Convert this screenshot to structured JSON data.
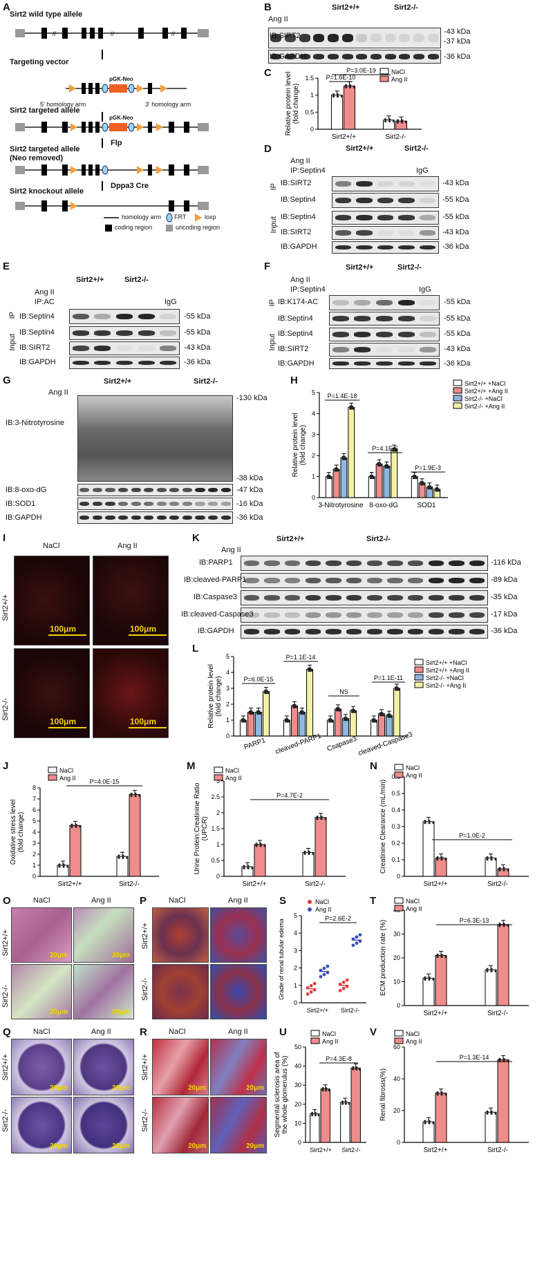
{
  "panels": {
    "A": {
      "label": "A",
      "rows": [
        {
          "title": "Sirt2 wild type allele",
          "exons": [
            "1",
            "4",
            "5",
            "6",
            "7",
            "8",
            "9",
            "16"
          ]
        },
        {
          "title": "Targeting vector",
          "arm5": "5' homology arm",
          "arm3": "3' homology arm",
          "cassette": "pGK-Neo",
          "exons": [
            "5",
            "6",
            "7",
            "8"
          ]
        },
        {
          "title": "Sirt2 targeted allele",
          "cassette": "pGK-Neo",
          "exons": [
            "1",
            "4",
            "5",
            "6",
            "7",
            "8",
            "9",
            "16"
          ]
        },
        {
          "title": "Sirt2 targeted allele\n(Neo removed)",
          "exons": [
            "1",
            "4",
            "5",
            "6",
            "7",
            "8",
            "9",
            "16"
          ]
        },
        {
          "title": "Sirt2 knockout allele",
          "exons": [
            "1",
            "4",
            "9",
            "16"
          ]
        }
      ],
      "steps": [
        "Flp",
        "Dppa3 Cre"
      ],
      "legend": [
        "homology arm",
        "FRT",
        "loxp",
        "coding region",
        "uncoding region"
      ]
    },
    "B": {
      "label": "B",
      "wt": "Sirt2+/+",
      "ko": "Sirt2-/-",
      "angII": "Ang II",
      "rows": [
        "IB:SIRT2",
        "IB:GAPDH"
      ],
      "sizes": [
        "-43 kDa",
        "-37 kDa",
        "-36 kDa"
      ],
      "signs": [
        "–",
        "–",
        "–",
        "+",
        "+",
        "+",
        "–",
        "–",
        "–",
        "+",
        "+",
        "+"
      ]
    },
    "C": {
      "label": "C",
      "ylabel": "Relative protein level\n(fold change)",
      "groups": [
        "Sirt2+/+",
        "Sirt2-/-"
      ],
      "legend": [
        "NaCl",
        "Ang II"
      ],
      "p1": "P=3.0E-19",
      "p2": "P=1.6E-10"
    },
    "D": {
      "label": "D",
      "wt": "Sirt2+/+",
      "ko": "Sirt2-/-",
      "angII": "Ang II",
      "ip": "IP:Septin4",
      "igg": "IgG",
      "side1": "IP",
      "side2": "Input",
      "rows": [
        "IB:SIRT2",
        "IB:Septin4",
        "IB:Septin4",
        "IB:SIRT2",
        "IB:GAPDH"
      ],
      "sizes": [
        "-43 kDa",
        "-55 kDa",
        "-55 kDa",
        "-43 kDa",
        "-36 kDa"
      ]
    },
    "E": {
      "label": "E",
      "wt": "Sirt2+/+",
      "ko": "Sirt2-/-",
      "angII": "Ang II",
      "ip": "IP:AC",
      "igg": "IgG",
      "side1": "IP",
      "side2": "Input",
      "rows": [
        "IB:Septin4",
        "IB:Septin4",
        "IB:SIRT2",
        "IB:GAPDH"
      ],
      "sizes": [
        "-55 kDa",
        "-55 kDa",
        "-43 kDa",
        "-36 kDa"
      ]
    },
    "F": {
      "label": "F",
      "wt": "Sirt2+/+",
      "ko": "Sirt2-/-",
      "angII": "Ang II",
      "ip": "IP:Septin4",
      "igg": "IgG",
      "side1": "IP",
      "side2": "Input",
      "rows": [
        "IB:K174-AC",
        "IB:Septin4",
        "IB:Septin4",
        "IB:SIRT2",
        "IB:GAPDH"
      ],
      "sizes": [
        "-55 kDa",
        "-55 kDa",
        "-55 kDa",
        "-43 kDa",
        "-36 kDa"
      ]
    },
    "G": {
      "label": "G",
      "wt": "Sirt2+/+",
      "ko": "Sirt2-/-",
      "angII": "Ang II",
      "rows": [
        "IB:3-Nitrotyrosine",
        "IB:8-oxo-dG",
        "IB:SOD1",
        "IB:GAPDH"
      ],
      "sizes": [
        "-130 kDa",
        "-38 kDa",
        "-47 kDa",
        "-16 kDa",
        "-36 kDa"
      ]
    },
    "H": {
      "label": "H",
      "ylabel": "Relative protein level\n(fold change)",
      "cats": [
        "3-Nitrotyrosine",
        "8-oxo-dG",
        "SOD1"
      ],
      "legend": [
        "Sirt2+/+ +NaCl",
        "Sirt2+/+ +Ang II",
        "Sirt2-/- +NaCl",
        "Sirt2-/- +Ang II"
      ],
      "pvals": [
        "P=1.4E-18",
        "P=4.1E-6",
        "P=1.9E-3"
      ]
    },
    "I": {
      "label": "I",
      "cols": [
        "NaCl",
        "Ang II"
      ],
      "rows": [
        "Sirt2+/+",
        "Sirt2-/-"
      ],
      "scale": "100μm"
    },
    "K": {
      "label": "K",
      "wt": "Sirt2+/+",
      "ko": "Sirt2-/-",
      "angII": "Ang II",
      "rows": [
        "IB:PARP1",
        "IB:cleaved-PARP1",
        "IB:Caspase3",
        "IB:cleaved-Caspase3",
        "IB:GAPDH"
      ],
      "sizes": [
        "-116 kDa",
        "-89 kDa",
        "-35 kDa",
        "-17 kDa",
        "-36 kDa"
      ]
    },
    "L": {
      "label": "L",
      "ylabel": "Relative protein level\n(fold change)",
      "cats": [
        "PARP1",
        "cleaved-PARP1",
        "Csapase3",
        "cleaved-Caspase3"
      ],
      "legend": [
        "Sirt2+/+ +NaCl",
        "Sirt2+/+ +Ang II",
        "Sirt2-/- +NaCl",
        "Sirt2-/- +Ang II"
      ],
      "pvals": [
        "P=6.0E-15",
        "P=1.1E-14",
        "NS",
        "P=1.1E-11"
      ]
    },
    "J": {
      "label": "J",
      "ylabel": "Oxidative stress level\n(fold change)",
      "groups": [
        "Sirt2+/+",
        "Sirt2-/-"
      ],
      "legend": [
        "NaCl",
        "Ang II"
      ],
      "p": "P=4.0E-15"
    },
    "M": {
      "label": "M",
      "ylabel": "Urine Protein:Creatinine Ratio\n(UPCR)",
      "groups": [
        "Sirt2+/+",
        "Sirt2-/-"
      ],
      "legend": [
        "NaCl",
        "Ang II"
      ],
      "p": "P=4.7E-2"
    },
    "N": {
      "label": "N",
      "ylabel": "Creatinine Clearance (mL/min)",
      "groups": [
        "Sirt2+/+",
        "Sirt2-/-"
      ],
      "legend": [
        "NaCl",
        "Ang II"
      ],
      "p": "P=1.0E-2"
    },
    "O": {
      "label": "O",
      "cols": [
        "NaCl",
        "Ang II"
      ],
      "rows": [
        "Sirt2+/+",
        "Sirt2-/-"
      ],
      "scale": "20μm"
    },
    "P": {
      "label": "P",
      "cols": [
        "NaCl",
        "Ang II"
      ],
      "rows": [
        "Sirt2+/+",
        "Sirt2-/-"
      ]
    },
    "Q": {
      "label": "Q",
      "cols": [
        "NaCl",
        "Ang II"
      ],
      "rows": [
        "Sirt2+/+",
        "Sirt2-/-"
      ],
      "scale": "20μm"
    },
    "R": {
      "label": "R",
      "cols": [
        "NaCl",
        "Ang II"
      ],
      "rows": [
        "Sirt2+/+",
        "Sirt2-/-"
      ],
      "scale": "20μm"
    },
    "S": {
      "label": "S",
      "ylabel": "Grade of renal tubular edema",
      "groups": [
        "Sirt2+/+",
        "Sirt2-/-"
      ],
      "legend": [
        "NaCl",
        "Ang II"
      ],
      "p": "P=2.6E-2"
    },
    "T": {
      "label": "T",
      "ylabel": "ECM production rate  (%)",
      "groups": [
        "Sirt2+/+",
        "Sirt2-/-"
      ],
      "legend": [
        "NaCl",
        "Ang II"
      ],
      "p": "P=6.3E-13"
    },
    "U": {
      "label": "U",
      "ylabel": "Segmental sclerosis area of\nthe whole glomerulus (%)",
      "groups": [
        "Sirt2+/+",
        "Sirt2-/-"
      ],
      "legend": [
        "NaCl",
        "Ang II"
      ],
      "p": "P=4.3E-8"
    },
    "V": {
      "label": "V",
      "ylabel": "Renal fibrosis(%)",
      "groups": [
        "Sirt2+/+",
        "Sirt2-/-"
      ],
      "legend": [
        "NaCl",
        "Ang II"
      ],
      "p": "P=1.3E-14"
    }
  },
  "colors": {
    "nacl": "#ffffff",
    "angii": "#f08c8c",
    "ko_nacl": "#8fb7e0",
    "ko_angii": "#f3f1a6",
    "scale": "#f5d400",
    "dot_nacl": "#e23b3b",
    "dot_angii": "#3a4db5"
  },
  "chart_data": [
    {
      "panel": "C",
      "type": "bar",
      "categories": [
        "Sirt2+/+",
        "Sirt2-/-"
      ],
      "series": [
        {
          "name": "NaCl",
          "values": [
            1.0,
            0.27
          ]
        },
        {
          "name": "Ang II",
          "values": [
            1.27,
            0.24
          ]
        }
      ],
      "ylim": [
        0,
        1.5
      ],
      "yticks": [
        0,
        0.5,
        1.0,
        1.5
      ]
    },
    {
      "panel": "H",
      "type": "bar",
      "categories": [
        "3-Nitrotyrosine",
        "8-oxo-dG",
        "SOD1"
      ],
      "series": [
        {
          "name": "Sirt2+/+ +NaCl",
          "values": [
            1.0,
            1.0,
            1.0
          ]
        },
        {
          "name": "Sirt2+/+ +Ang II",
          "values": [
            1.35,
            1.6,
            0.7
          ]
        },
        {
          "name": "Sirt2-/- +NaCl",
          "values": [
            1.9,
            1.5,
            0.5
          ]
        },
        {
          "name": "Sirt2-/- +Ang II",
          "values": [
            4.3,
            2.3,
            0.4
          ]
        }
      ],
      "ylim": [
        0,
        5
      ],
      "yticks": [
        0,
        1,
        2,
        3,
        4,
        5
      ]
    },
    {
      "panel": "L",
      "type": "bar",
      "categories": [
        "PARP1",
        "cleaved-PARP1",
        "Csapase3",
        "cleaved-Caspase3"
      ],
      "series": [
        {
          "name": "Sirt2+/+ +NaCl",
          "values": [
            1.0,
            1.0,
            1.0,
            1.0
          ]
        },
        {
          "name": "Sirt2+/+ +Ang II",
          "values": [
            1.5,
            1.9,
            1.7,
            1.4
          ]
        },
        {
          "name": "Sirt2-/- +NaCl",
          "values": [
            1.5,
            1.5,
            1.1,
            1.3
          ]
        },
        {
          "name": "Sirt2-/- +Ang II",
          "values": [
            2.8,
            4.2,
            1.6,
            3.0
          ]
        }
      ],
      "ylim": [
        0,
        5
      ],
      "yticks": [
        0,
        1,
        2,
        3,
        4,
        5
      ]
    },
    {
      "panel": "J",
      "type": "bar",
      "categories": [
        "Sirt2+/+",
        "Sirt2-/-"
      ],
      "series": [
        {
          "name": "NaCl",
          "values": [
            1.0,
            1.8
          ]
        },
        {
          "name": "Ang II",
          "values": [
            4.6,
            7.4
          ]
        }
      ],
      "ylim": [
        0,
        8
      ],
      "yticks": [
        0,
        1,
        2,
        3,
        4,
        5,
        6,
        7,
        8
      ]
    },
    {
      "panel": "M",
      "type": "bar",
      "categories": [
        "Sirt2+/+",
        "Sirt2-/-"
      ],
      "series": [
        {
          "name": "NaCl",
          "values": [
            0.3,
            0.75
          ]
        },
        {
          "name": "Ang II",
          "values": [
            1.0,
            1.85
          ]
        }
      ],
      "ylim": [
        0,
        3.0
      ],
      "yticks": [
        0,
        0.5,
        1.0,
        1.5,
        2.0,
        2.5,
        3.0
      ]
    },
    {
      "panel": "N",
      "type": "bar",
      "categories": [
        "Sirt2+/+",
        "Sirt2-/-"
      ],
      "series": [
        {
          "name": "NaCl",
          "values": [
            0.33,
            0.11
          ]
        },
        {
          "name": "Ang II",
          "values": [
            0.11,
            0.045
          ]
        }
      ],
      "ylim": [
        0,
        0.6
      ],
      "yticks": [
        0,
        0.1,
        0.2,
        0.3,
        0.4,
        0.5,
        0.6
      ]
    },
    {
      "panel": "S",
      "type": "scatter",
      "categories": [
        "Sirt2+/+",
        "Sirt2-/-"
      ],
      "series": [
        {
          "name": "NaCl",
          "values": [
            0.8,
            1.0
          ]
        },
        {
          "name": "Ang II",
          "values": [
            1.8,
            3.6
          ]
        }
      ],
      "ylim": [
        0,
        5
      ],
      "yticks": [
        0,
        1,
        2,
        3,
        4,
        5
      ]
    },
    {
      "panel": "T",
      "type": "bar",
      "categories": [
        "Sirt2+/+",
        "Sirt2-/-"
      ],
      "series": [
        {
          "name": "NaCl",
          "values": [
            11.5,
            15.0
          ]
        },
        {
          "name": "Ang II",
          "values": [
            21.0,
            34.0
          ]
        }
      ],
      "ylim": [
        0,
        40
      ],
      "yticks": [
        0,
        10,
        20,
        30,
        40
      ]
    },
    {
      "panel": "U",
      "type": "bar",
      "categories": [
        "Sirt2+/+",
        "Sirt2-/-"
      ],
      "series": [
        {
          "name": "NaCl",
          "values": [
            15.0,
            21.0
          ]
        },
        {
          "name": "Ang II",
          "values": [
            28.0,
            39.0
          ]
        }
      ],
      "ylim": [
        0,
        50
      ],
      "yticks": [
        0,
        10,
        20,
        30,
        40,
        50
      ]
    },
    {
      "panel": "V",
      "type": "bar",
      "categories": [
        "Sirt2+/+",
        "Sirt2-/-"
      ],
      "series": [
        {
          "name": "NaCl",
          "values": [
            13.0,
            19.0
          ]
        },
        {
          "name": "Ang II",
          "values": [
            31.0,
            52.0
          ]
        }
      ],
      "ylim": [
        0,
        60
      ],
      "yticks": [
        0,
        20,
        40,
        60
      ]
    }
  ]
}
